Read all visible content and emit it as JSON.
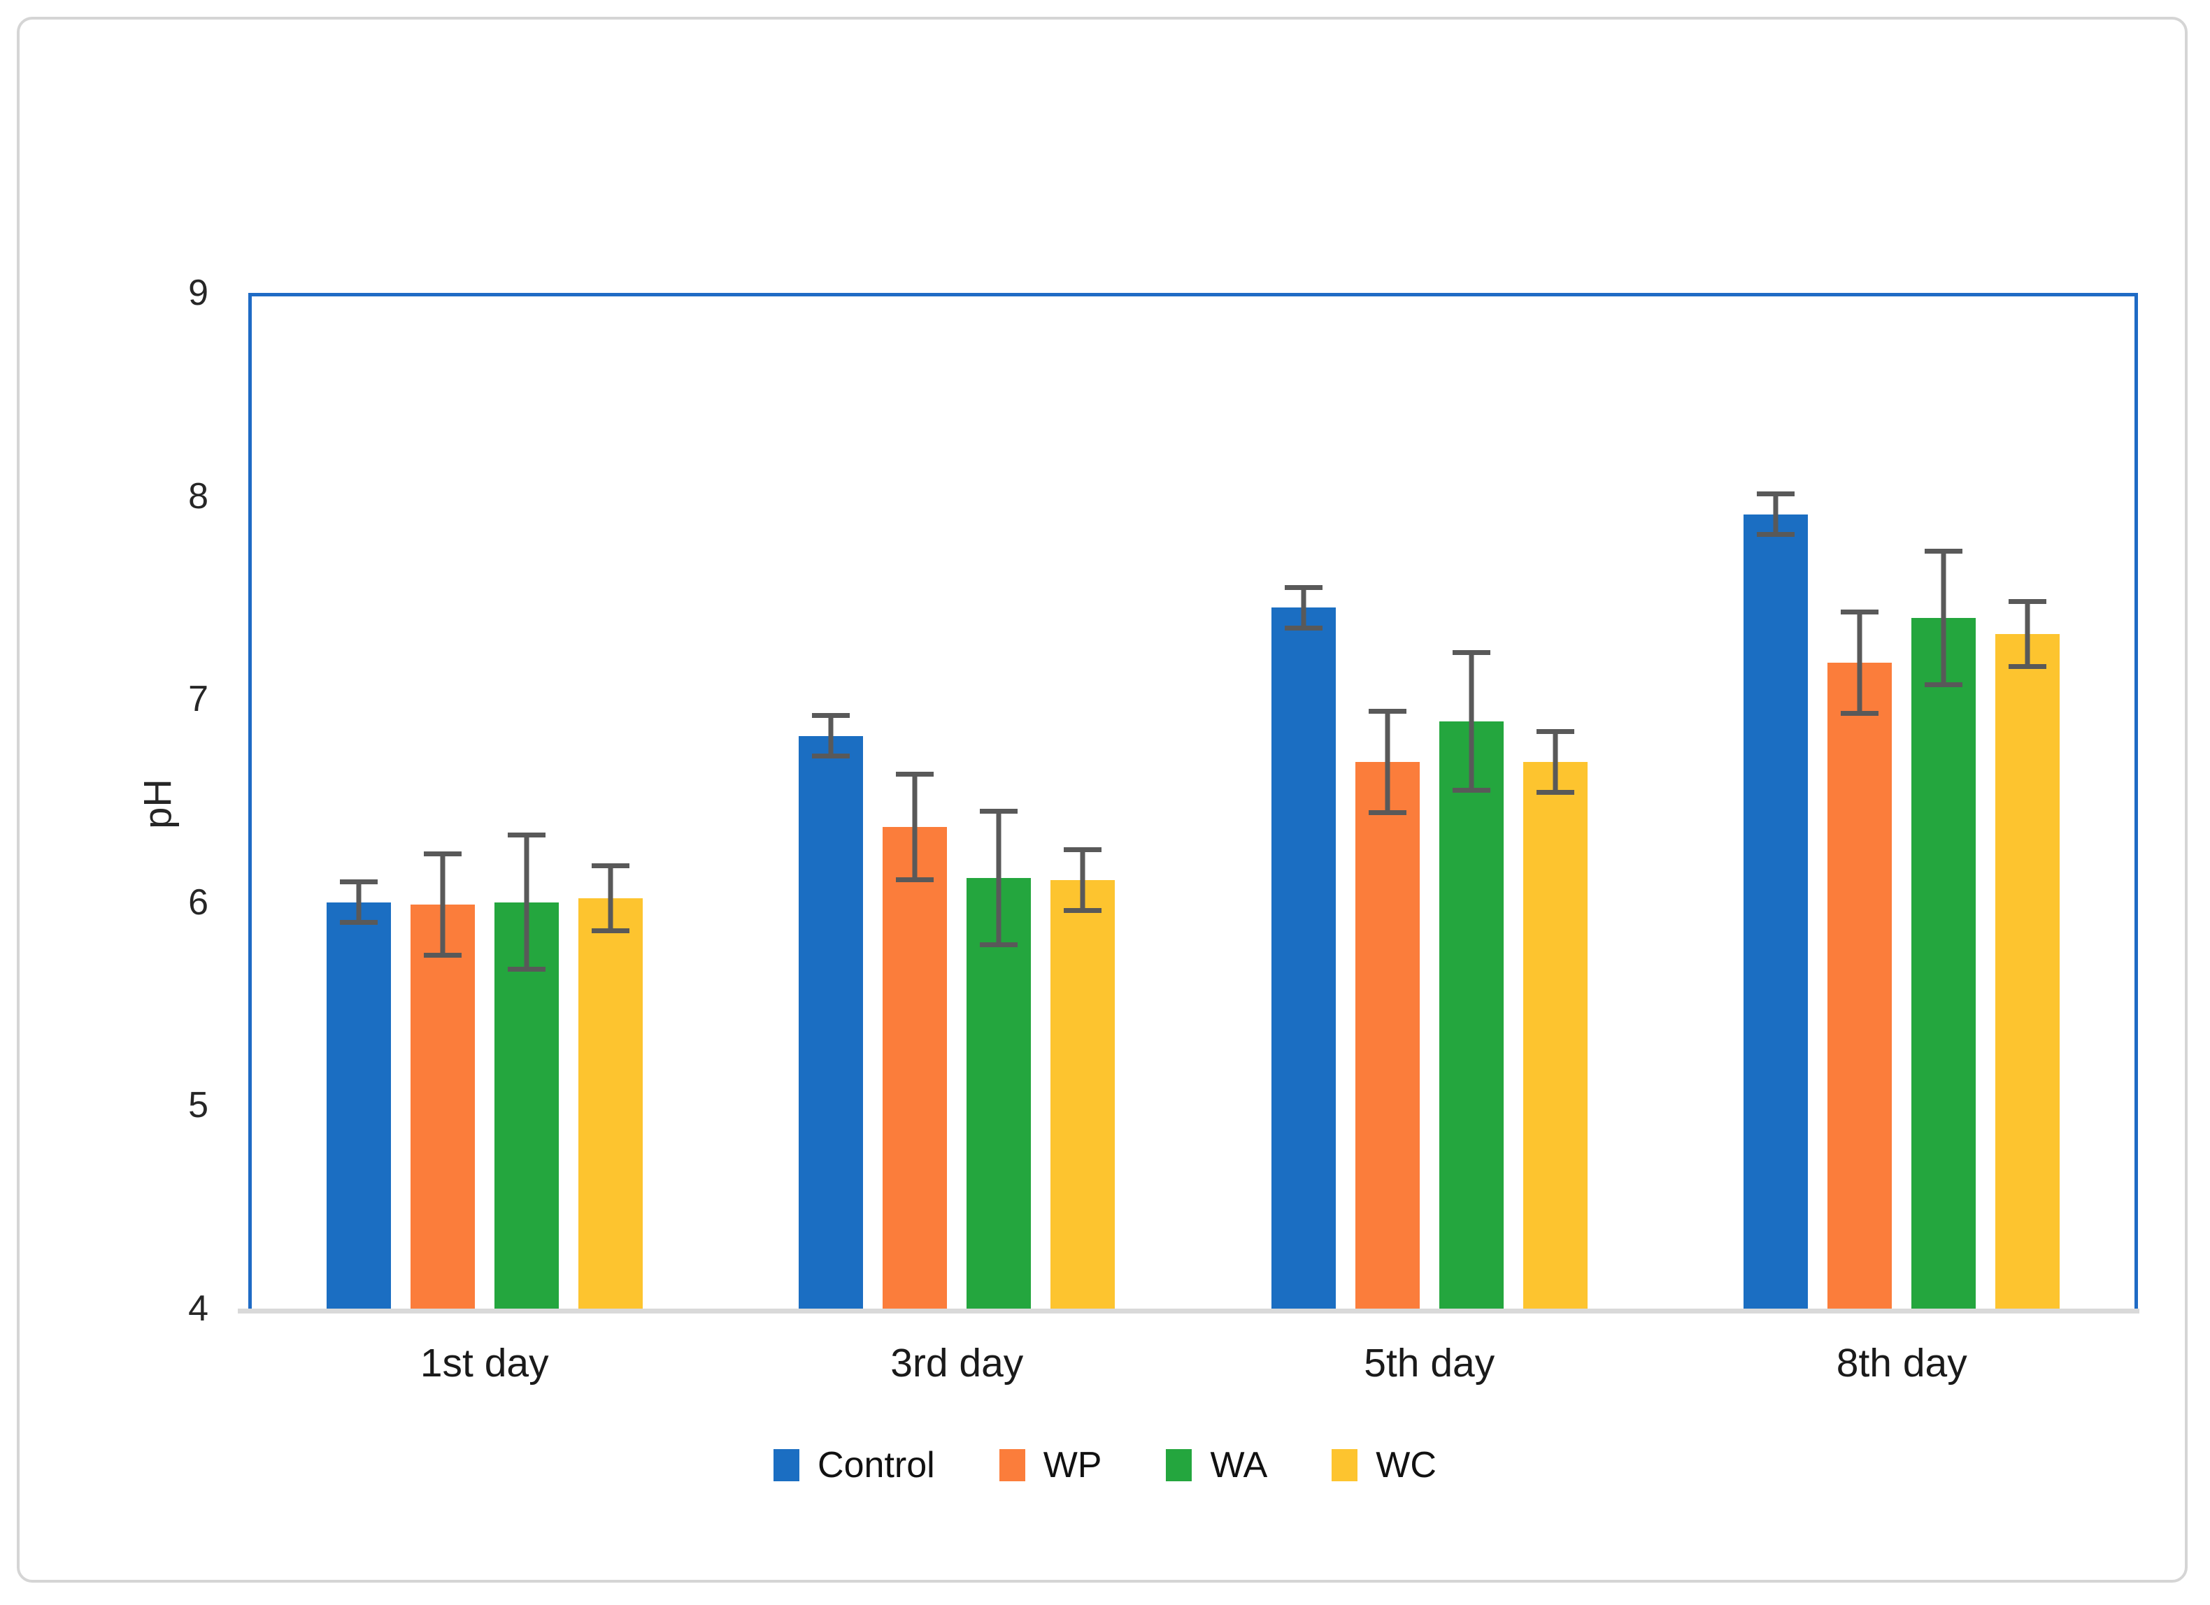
{
  "figure": {
    "background_color": "#ffffff",
    "outer_border_color": "#d5d5d5"
  },
  "axes": {
    "plot_border_color": "#1f6bc5",
    "x_axis_line_color": "#d9d9d9",
    "error_bar_color": "#595959",
    "tick_text_color": "#262626"
  },
  "chart_data": {
    "type": "bar",
    "title": "",
    "xlabel": "",
    "ylabel": "pH",
    "ylim": [
      4,
      9
    ],
    "yticks": [
      9,
      8,
      7,
      6,
      5,
      4
    ],
    "grid": false,
    "legend_position": "bottom",
    "categories": [
      "1st day",
      "3rd day",
      "5th day",
      "8th day"
    ],
    "series": [
      {
        "name": "Control",
        "color": "#1b6ec2",
        "values": [
          6.0,
          6.82,
          7.45,
          7.91
        ],
        "errors": [
          0.1,
          0.1,
          0.1,
          0.1
        ]
      },
      {
        "name": "WP",
        "color": "#fb7d3b",
        "values": [
          5.99,
          6.37,
          6.69,
          7.18
        ],
        "errors": [
          0.25,
          0.26,
          0.25,
          0.25
        ]
      },
      {
        "name": "WA",
        "color": "#24a63e",
        "values": [
          6.0,
          6.12,
          6.89,
          7.4
        ],
        "errors": [
          0.33,
          0.33,
          0.34,
          0.33
        ]
      },
      {
        "name": "WC",
        "color": "#fdc42f",
        "values": [
          6.02,
          6.11,
          6.69,
          7.32
        ],
        "errors": [
          0.16,
          0.15,
          0.15,
          0.16
        ]
      }
    ]
  }
}
